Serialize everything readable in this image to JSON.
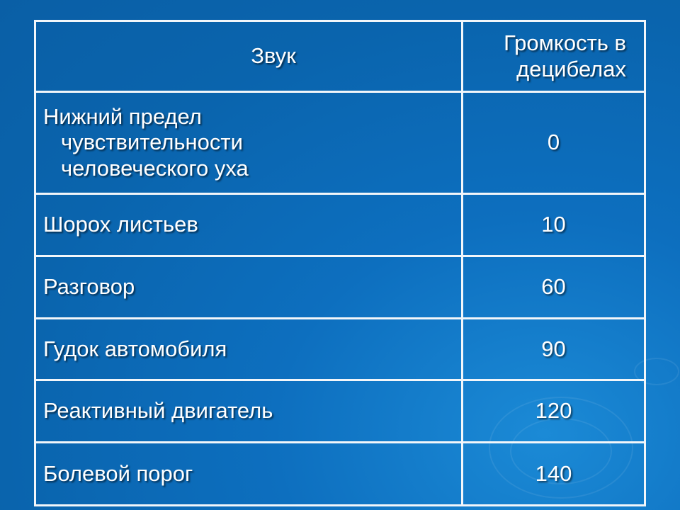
{
  "table": {
    "headers": [
      "Звук",
      "Громкость в децибелах"
    ],
    "rows": [
      {
        "sound": "Нижний предел чувствительности человеческого уха",
        "db": "0"
      },
      {
        "sound": "Шорох листьев",
        "db": "10"
      },
      {
        "sound": "Разговор",
        "db": "60"
      },
      {
        "sound": "Гудок автомобиля",
        "db": "90"
      },
      {
        "sound": "Реактивный двигатель",
        "db": "120"
      },
      {
        "sound": "Болевой порог",
        "db": "140"
      }
    ]
  },
  "colors": {
    "background": "#0a64ad",
    "grid": "#f2f6fa",
    "text": "#ffffff"
  }
}
